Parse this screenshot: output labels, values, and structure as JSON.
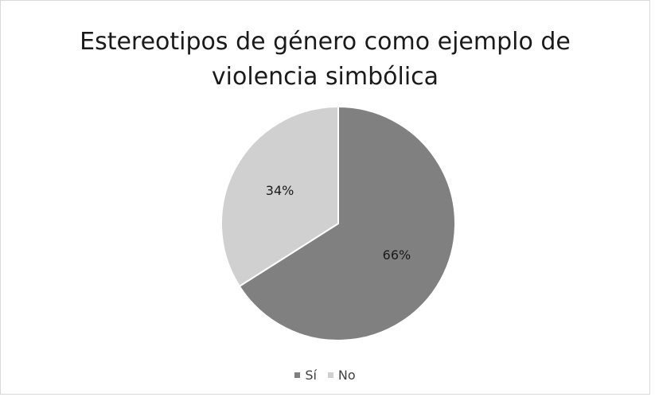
{
  "chart_data": {
    "type": "pie",
    "title_lines": [
      "Estereotipos de género como ejemplo de",
      "violencia simbólica"
    ],
    "categories": [
      "Sí",
      "No"
    ],
    "values": [
      66,
      34
    ],
    "data_labels": [
      "66%",
      "34%"
    ],
    "colors": [
      "#808080",
      "#d0d0d0"
    ],
    "start_angle": "12 o'clock",
    "direction": "clockwise",
    "legend_position": "bottom"
  }
}
